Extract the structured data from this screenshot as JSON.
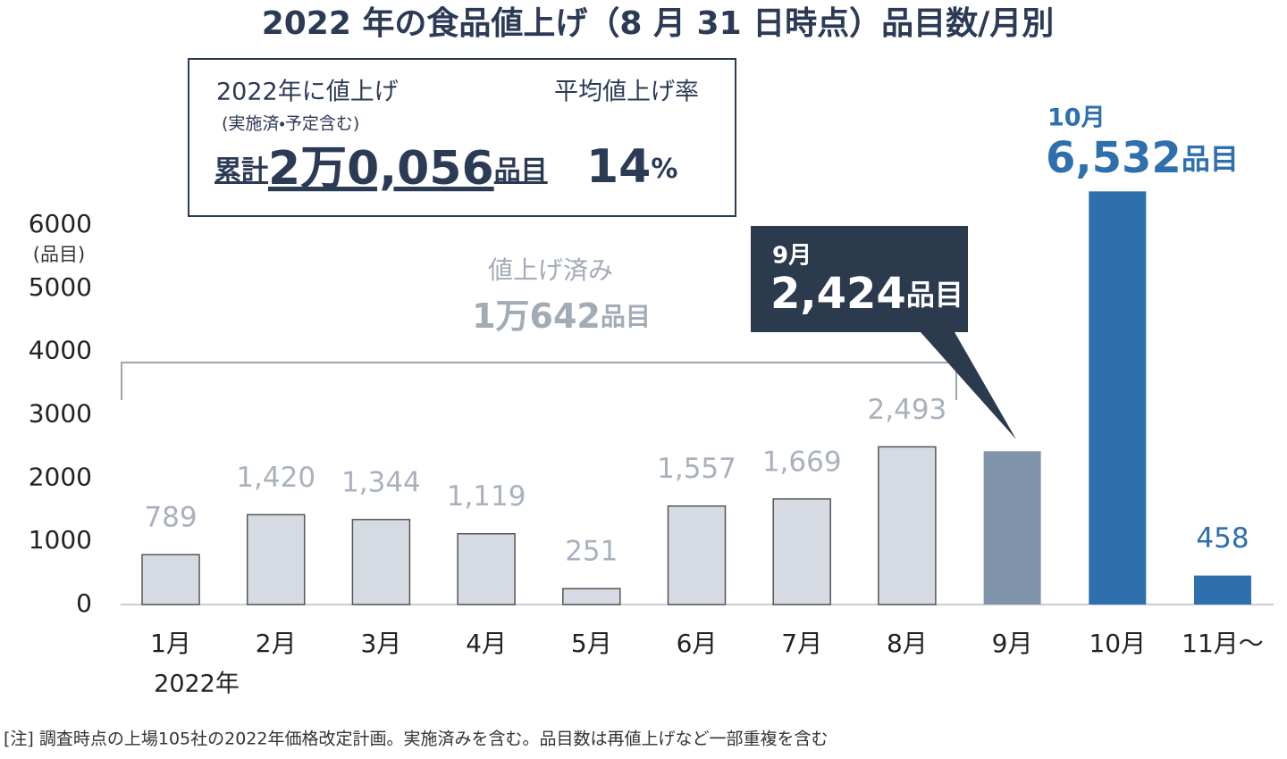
{
  "chart_data": {
    "type": "bar",
    "title": "2022 年の食品値上げ（8 月 31 日時点）品目数/月別",
    "categories": [
      "1月",
      "2月",
      "3月",
      "4月",
      "5月",
      "6月",
      "7月",
      "8月",
      "9月",
      "10月",
      "11月〜"
    ],
    "values": [
      789,
      1420,
      1344,
      1119,
      251,
      1557,
      1669,
      2493,
      2424,
      6532,
      458
    ],
    "value_labels": [
      "789",
      "1,420",
      "1,344",
      "1,119",
      "251",
      "1,557",
      "1,669",
      "2,493",
      "2,424",
      "6,532",
      "458"
    ],
    "colors": [
      "#d6dbe3",
      "#d6dbe3",
      "#d6dbe3",
      "#d6dbe3",
      "#d6dbe3",
      "#d6dbe3",
      "#d6dbe3",
      "#d6dbe3",
      "#7f93aa",
      "#2e6fae",
      "#2e6fae"
    ],
    "unit": "品目",
    "y_axis_label": "(品目)",
    "x_sub_label": "2022年",
    "ylim": [
      0,
      6000
    ],
    "yticks": [
      0,
      1000,
      2000,
      3000,
      4000,
      5000,
      6000
    ],
    "summary": {
      "heading": "2022年に値上げ",
      "subheading": "(実施済・予定含む)",
      "total_prefix": "累計",
      "total": "2万0,056",
      "total_unit": "品目",
      "rate_heading": "平均値上げ率",
      "rate": "14",
      "rate_unit": "%"
    },
    "bracket": {
      "label": "値上げ済み",
      "total": "1万642",
      "unit": "品目"
    },
    "note": "[注]  調査時点の上場105社の2022年価格改定計画。実施済みを含む。品目数は再値上げなど一部重複を含む"
  }
}
